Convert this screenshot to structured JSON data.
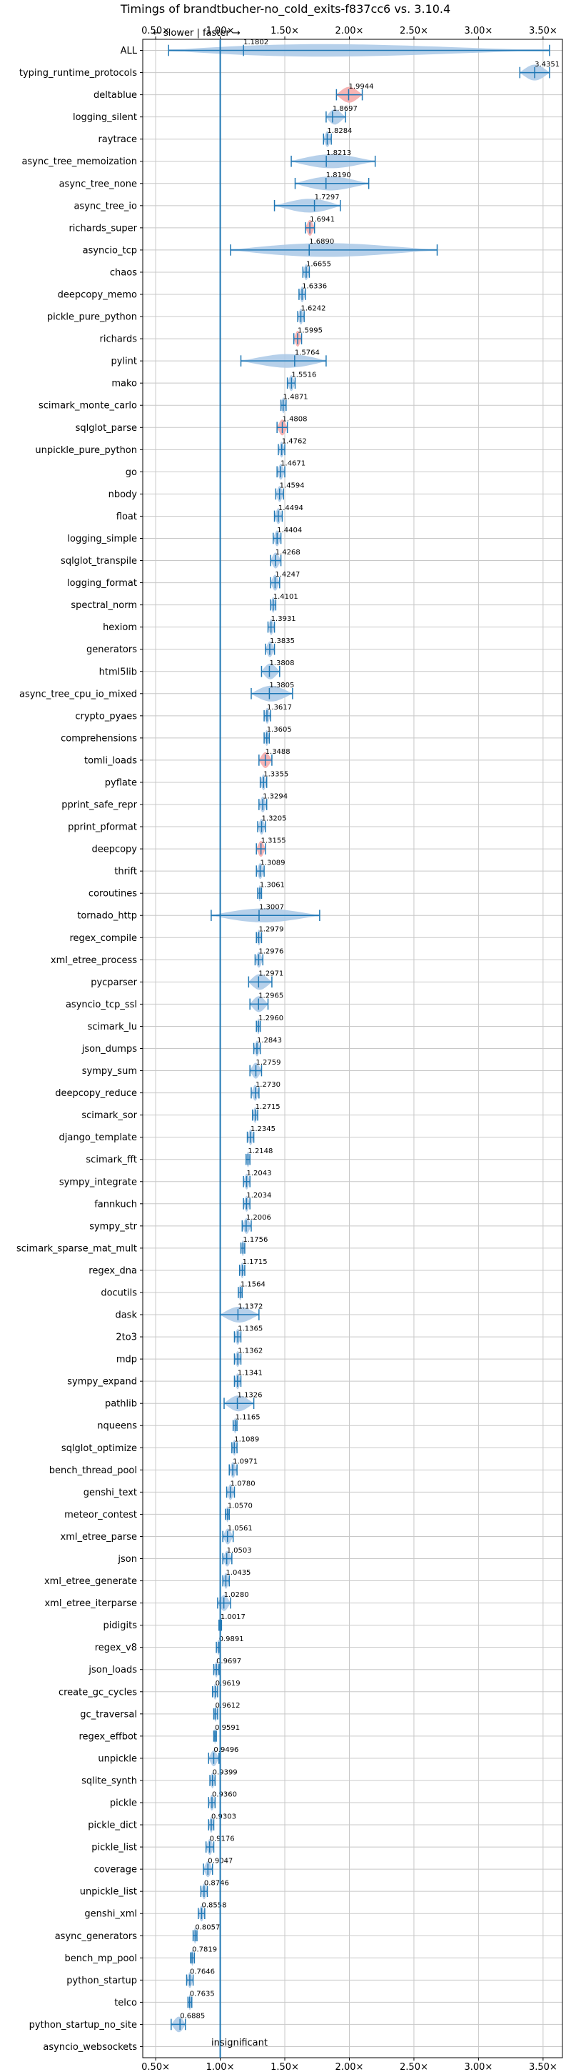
{
  "chart_data": {
    "type": "violin",
    "title": "Timings of brandtbucher-no_cold_exits-f837cc6 vs. 3.10.4",
    "direction_note": "← slower | faster →",
    "insignificant_note": "insignificant",
    "xlim": [
      0.4,
      3.65
    ],
    "reference_x": 1.0,
    "grid": true,
    "x_ticks": [
      0.5,
      1.0,
      1.5,
      2.0,
      2.5,
      3.0,
      3.5
    ],
    "x_tick_labels": [
      "0.50×",
      "1.00×",
      "1.50×",
      "2.00×",
      "2.50×",
      "3.00×",
      "3.50×"
    ],
    "colors": {
      "normal": "#1f77b4",
      "highlight": "#f4a7a7",
      "violin": "#a9c8e6",
      "grid": "#c8c8c8"
    },
    "benchmarks": [
      {
        "name": "ALL",
        "value": "1.1802",
        "mean": 1.1802,
        "min": 0.6,
        "max": 3.55,
        "highlight": false
      },
      {
        "name": "typing_runtime_protocols",
        "value": "3.4351",
        "mean": 3.4351,
        "min": 3.32,
        "max": 3.55,
        "highlight": false
      },
      {
        "name": "deltablue",
        "value": "1.9944",
        "mean": 1.9944,
        "min": 1.9,
        "max": 2.1,
        "highlight": true
      },
      {
        "name": "logging_silent",
        "value": "1.8697",
        "mean": 1.8697,
        "min": 1.82,
        "max": 1.97,
        "highlight": false
      },
      {
        "name": "raytrace",
        "value": "1.8284",
        "mean": 1.8284,
        "min": 1.8,
        "max": 1.86,
        "highlight": false
      },
      {
        "name": "async_tree_memoization",
        "value": "1.8213",
        "mean": 1.8213,
        "min": 1.55,
        "max": 2.2,
        "highlight": false
      },
      {
        "name": "async_tree_none",
        "value": "1.8190",
        "mean": 1.819,
        "min": 1.58,
        "max": 2.15,
        "highlight": false
      },
      {
        "name": "async_tree_io",
        "value": "1.7297",
        "mean": 1.7297,
        "min": 1.42,
        "max": 1.93,
        "highlight": false
      },
      {
        "name": "richards_super",
        "value": "1.6941",
        "mean": 1.6941,
        "min": 1.66,
        "max": 1.73,
        "highlight": true
      },
      {
        "name": "asyncio_tcp",
        "value": "1.6890",
        "mean": 1.689,
        "min": 1.08,
        "max": 2.68,
        "highlight": false
      },
      {
        "name": "chaos",
        "value": "1.6655",
        "mean": 1.6655,
        "min": 1.64,
        "max": 1.69,
        "highlight": false
      },
      {
        "name": "deepcopy_memo",
        "value": "1.6336",
        "mean": 1.6336,
        "min": 1.61,
        "max": 1.66,
        "highlight": false
      },
      {
        "name": "pickle_pure_python",
        "value": "1.6242",
        "mean": 1.6242,
        "min": 1.6,
        "max": 1.65,
        "highlight": false
      },
      {
        "name": "richards",
        "value": "1.5995",
        "mean": 1.5995,
        "min": 1.57,
        "max": 1.63,
        "highlight": true
      },
      {
        "name": "pylint",
        "value": "1.5764",
        "mean": 1.5764,
        "min": 1.16,
        "max": 1.82,
        "highlight": false
      },
      {
        "name": "mako",
        "value": "1.5516",
        "mean": 1.5516,
        "min": 1.52,
        "max": 1.58,
        "highlight": false
      },
      {
        "name": "scimark_monte_carlo",
        "value": "1.4871",
        "mean": 1.4871,
        "min": 1.47,
        "max": 1.51,
        "highlight": false
      },
      {
        "name": "sqlglot_parse",
        "value": "1.4808",
        "mean": 1.4808,
        "min": 1.44,
        "max": 1.52,
        "highlight": true
      },
      {
        "name": "unpickle_pure_python",
        "value": "1.4762",
        "mean": 1.4762,
        "min": 1.45,
        "max": 1.5,
        "highlight": false
      },
      {
        "name": "go",
        "value": "1.4671",
        "mean": 1.4671,
        "min": 1.44,
        "max": 1.5,
        "highlight": false
      },
      {
        "name": "nbody",
        "value": "1.4594",
        "mean": 1.4594,
        "min": 1.43,
        "max": 1.49,
        "highlight": false
      },
      {
        "name": "float",
        "value": "1.4494",
        "mean": 1.4494,
        "min": 1.42,
        "max": 1.48,
        "highlight": false
      },
      {
        "name": "logging_simple",
        "value": "1.4404",
        "mean": 1.4404,
        "min": 1.41,
        "max": 1.47,
        "highlight": false
      },
      {
        "name": "sqlglot_transpile",
        "value": "1.4268",
        "mean": 1.4268,
        "min": 1.39,
        "max": 1.47,
        "highlight": false
      },
      {
        "name": "logging_format",
        "value": "1.4247",
        "mean": 1.4247,
        "min": 1.39,
        "max": 1.46,
        "highlight": false
      },
      {
        "name": "spectral_norm",
        "value": "1.4101",
        "mean": 1.4101,
        "min": 1.39,
        "max": 1.43,
        "highlight": false
      },
      {
        "name": "hexiom",
        "value": "1.3931",
        "mean": 1.3931,
        "min": 1.37,
        "max": 1.42,
        "highlight": false
      },
      {
        "name": "generators",
        "value": "1.3835",
        "mean": 1.3835,
        "min": 1.35,
        "max": 1.42,
        "highlight": false
      },
      {
        "name": "html5lib",
        "value": "1.3808",
        "mean": 1.3808,
        "min": 1.32,
        "max": 1.46,
        "highlight": false
      },
      {
        "name": "async_tree_cpu_io_mixed",
        "value": "1.3805",
        "mean": 1.3805,
        "min": 1.24,
        "max": 1.56,
        "highlight": false
      },
      {
        "name": "crypto_pyaes",
        "value": "1.3617",
        "mean": 1.3617,
        "min": 1.34,
        "max": 1.39,
        "highlight": false
      },
      {
        "name": "comprehensions",
        "value": "1.3605",
        "mean": 1.3605,
        "min": 1.34,
        "max": 1.38,
        "highlight": false
      },
      {
        "name": "tomli_loads",
        "value": "1.3488",
        "mean": 1.3488,
        "min": 1.3,
        "max": 1.4,
        "highlight": true
      },
      {
        "name": "pyflate",
        "value": "1.3355",
        "mean": 1.3355,
        "min": 1.31,
        "max": 1.36,
        "highlight": false
      },
      {
        "name": "pprint_safe_repr",
        "value": "1.3294",
        "mean": 1.3294,
        "min": 1.3,
        "max": 1.36,
        "highlight": false
      },
      {
        "name": "pprint_pformat",
        "value": "1.3205",
        "mean": 1.3205,
        "min": 1.29,
        "max": 1.35,
        "highlight": false
      },
      {
        "name": "deepcopy",
        "value": "1.3155",
        "mean": 1.3155,
        "min": 1.28,
        "max": 1.35,
        "highlight": true
      },
      {
        "name": "thrift",
        "value": "1.3089",
        "mean": 1.3089,
        "min": 1.28,
        "max": 1.34,
        "highlight": false
      },
      {
        "name": "coroutines",
        "value": "1.3061",
        "mean": 1.3061,
        "min": 1.29,
        "max": 1.32,
        "highlight": false
      },
      {
        "name": "tornado_http",
        "value": "1.3007",
        "mean": 1.3007,
        "min": 0.93,
        "max": 1.77,
        "highlight": false
      },
      {
        "name": "regex_compile",
        "value": "1.2979",
        "mean": 1.2979,
        "min": 1.28,
        "max": 1.32,
        "highlight": false
      },
      {
        "name": "xml_etree_process",
        "value": "1.2976",
        "mean": 1.2976,
        "min": 1.27,
        "max": 1.33,
        "highlight": false
      },
      {
        "name": "pycparser",
        "value": "1.2971",
        "mean": 1.2971,
        "min": 1.22,
        "max": 1.4,
        "highlight": false
      },
      {
        "name": "asyncio_tcp_ssl",
        "value": "1.2965",
        "mean": 1.2965,
        "min": 1.23,
        "max": 1.37,
        "highlight": false
      },
      {
        "name": "scimark_lu",
        "value": "1.2960",
        "mean": 1.296,
        "min": 1.28,
        "max": 1.31,
        "highlight": false
      },
      {
        "name": "json_dumps",
        "value": "1.2843",
        "mean": 1.2843,
        "min": 1.26,
        "max": 1.31,
        "highlight": false
      },
      {
        "name": "sympy_sum",
        "value": "1.2759",
        "mean": 1.2759,
        "min": 1.23,
        "max": 1.32,
        "highlight": false
      },
      {
        "name": "deepcopy_reduce",
        "value": "1.2730",
        "mean": 1.273,
        "min": 1.24,
        "max": 1.3,
        "highlight": false
      },
      {
        "name": "scimark_sor",
        "value": "1.2715",
        "mean": 1.2715,
        "min": 1.25,
        "max": 1.29,
        "highlight": false
      },
      {
        "name": "django_template",
        "value": "1.2345",
        "mean": 1.2345,
        "min": 1.21,
        "max": 1.26,
        "highlight": false
      },
      {
        "name": "scimark_fft",
        "value": "1.2148",
        "mean": 1.2148,
        "min": 1.2,
        "max": 1.23,
        "highlight": false
      },
      {
        "name": "sympy_integrate",
        "value": "1.2043",
        "mean": 1.2043,
        "min": 1.18,
        "max": 1.23,
        "highlight": false
      },
      {
        "name": "fannkuch",
        "value": "1.2034",
        "mean": 1.2034,
        "min": 1.18,
        "max": 1.23,
        "highlight": false
      },
      {
        "name": "sympy_str",
        "value": "1.2006",
        "mean": 1.2006,
        "min": 1.17,
        "max": 1.24,
        "highlight": false
      },
      {
        "name": "scimark_sparse_mat_mult",
        "value": "1.1756",
        "mean": 1.1756,
        "min": 1.16,
        "max": 1.19,
        "highlight": false
      },
      {
        "name": "regex_dna",
        "value": "1.1715",
        "mean": 1.1715,
        "min": 1.15,
        "max": 1.19,
        "highlight": false
      },
      {
        "name": "docutils",
        "value": "1.1564",
        "mean": 1.1564,
        "min": 1.14,
        "max": 1.17,
        "highlight": false
      },
      {
        "name": "dask",
        "value": "1.1372",
        "mean": 1.1372,
        "min": 1.0,
        "max": 1.3,
        "highlight": false
      },
      {
        "name": "2to3",
        "value": "1.1365",
        "mean": 1.1365,
        "min": 1.11,
        "max": 1.16,
        "highlight": false
      },
      {
        "name": "mdp",
        "value": "1.1362",
        "mean": 1.1362,
        "min": 1.11,
        "max": 1.16,
        "highlight": false
      },
      {
        "name": "sympy_expand",
        "value": "1.1341",
        "mean": 1.1341,
        "min": 1.11,
        "max": 1.16,
        "highlight": false
      },
      {
        "name": "pathlib",
        "value": "1.1326",
        "mean": 1.1326,
        "min": 1.03,
        "max": 1.26,
        "highlight": false
      },
      {
        "name": "nqueens",
        "value": "1.1165",
        "mean": 1.1165,
        "min": 1.1,
        "max": 1.13,
        "highlight": false
      },
      {
        "name": "sqlglot_optimize",
        "value": "1.1089",
        "mean": 1.1089,
        "min": 1.09,
        "max": 1.13,
        "highlight": false
      },
      {
        "name": "bench_thread_pool",
        "value": "1.0971",
        "mean": 1.0971,
        "min": 1.07,
        "max": 1.13,
        "highlight": false
      },
      {
        "name": "genshi_text",
        "value": "1.0780",
        "mean": 1.078,
        "min": 1.05,
        "max": 1.11,
        "highlight": false
      },
      {
        "name": "meteor_contest",
        "value": "1.0570",
        "mean": 1.057,
        "min": 1.04,
        "max": 1.07,
        "highlight": false
      },
      {
        "name": "xml_etree_parse",
        "value": "1.0561",
        "mean": 1.0561,
        "min": 1.02,
        "max": 1.1,
        "highlight": false
      },
      {
        "name": "json",
        "value": "1.0503",
        "mean": 1.0503,
        "min": 1.02,
        "max": 1.09,
        "highlight": false
      },
      {
        "name": "xml_etree_generate",
        "value": "1.0435",
        "mean": 1.0435,
        "min": 1.02,
        "max": 1.07,
        "highlight": false
      },
      {
        "name": "xml_etree_iterparse",
        "value": "1.0280",
        "mean": 1.028,
        "min": 0.98,
        "max": 1.08,
        "highlight": false
      },
      {
        "name": "pidigits",
        "value": "1.0017",
        "mean": 1.0017,
        "min": 0.99,
        "max": 1.01,
        "highlight": false
      },
      {
        "name": "regex_v8",
        "value": "0.9891",
        "mean": 0.9891,
        "min": 0.97,
        "max": 1.0,
        "highlight": false
      },
      {
        "name": "json_loads",
        "value": "0.9697",
        "mean": 0.9697,
        "min": 0.95,
        "max": 0.99,
        "highlight": false
      },
      {
        "name": "create_gc_cycles",
        "value": "0.9619",
        "mean": 0.9619,
        "min": 0.94,
        "max": 0.98,
        "highlight": false
      },
      {
        "name": "gc_traversal",
        "value": "0.9612",
        "mean": 0.9612,
        "min": 0.95,
        "max": 0.98,
        "highlight": false
      },
      {
        "name": "regex_effbot",
        "value": "0.9591",
        "mean": 0.9591,
        "min": 0.95,
        "max": 0.97,
        "highlight": false
      },
      {
        "name": "unpickle",
        "value": "0.9496",
        "mean": 0.9496,
        "min": 0.91,
        "max": 0.99,
        "highlight": false
      },
      {
        "name": "sqlite_synth",
        "value": "0.9399",
        "mean": 0.9399,
        "min": 0.92,
        "max": 0.96,
        "highlight": false
      },
      {
        "name": "pickle",
        "value": "0.9360",
        "mean": 0.936,
        "min": 0.91,
        "max": 0.96,
        "highlight": false
      },
      {
        "name": "pickle_dict",
        "value": "0.9303",
        "mean": 0.9303,
        "min": 0.91,
        "max": 0.95,
        "highlight": false
      },
      {
        "name": "pickle_list",
        "value": "0.9176",
        "mean": 0.9176,
        "min": 0.89,
        "max": 0.95,
        "highlight": false
      },
      {
        "name": "coverage",
        "value": "0.9047",
        "mean": 0.9047,
        "min": 0.87,
        "max": 0.94,
        "highlight": false
      },
      {
        "name": "unpickle_list",
        "value": "0.8746",
        "mean": 0.8746,
        "min": 0.85,
        "max": 0.9,
        "highlight": false
      },
      {
        "name": "genshi_xml",
        "value": "0.8558",
        "mean": 0.8558,
        "min": 0.83,
        "max": 0.88,
        "highlight": false
      },
      {
        "name": "async_generators",
        "value": "0.8057",
        "mean": 0.8057,
        "min": 0.79,
        "max": 0.82,
        "highlight": false
      },
      {
        "name": "bench_mp_pool",
        "value": "0.7819",
        "mean": 0.7819,
        "min": 0.77,
        "max": 0.8,
        "highlight": false
      },
      {
        "name": "python_startup",
        "value": "0.7646",
        "mean": 0.7646,
        "min": 0.74,
        "max": 0.79,
        "highlight": false
      },
      {
        "name": "telco",
        "value": "0.7635",
        "mean": 0.7635,
        "min": 0.75,
        "max": 0.78,
        "highlight": false
      },
      {
        "name": "python_startup_no_site",
        "value": "0.6885",
        "mean": 0.6885,
        "min": 0.62,
        "max": 0.73,
        "highlight": false
      },
      {
        "name": "asyncio_websockets",
        "value": "",
        "mean": null,
        "min": null,
        "max": null,
        "highlight": false
      }
    ]
  }
}
